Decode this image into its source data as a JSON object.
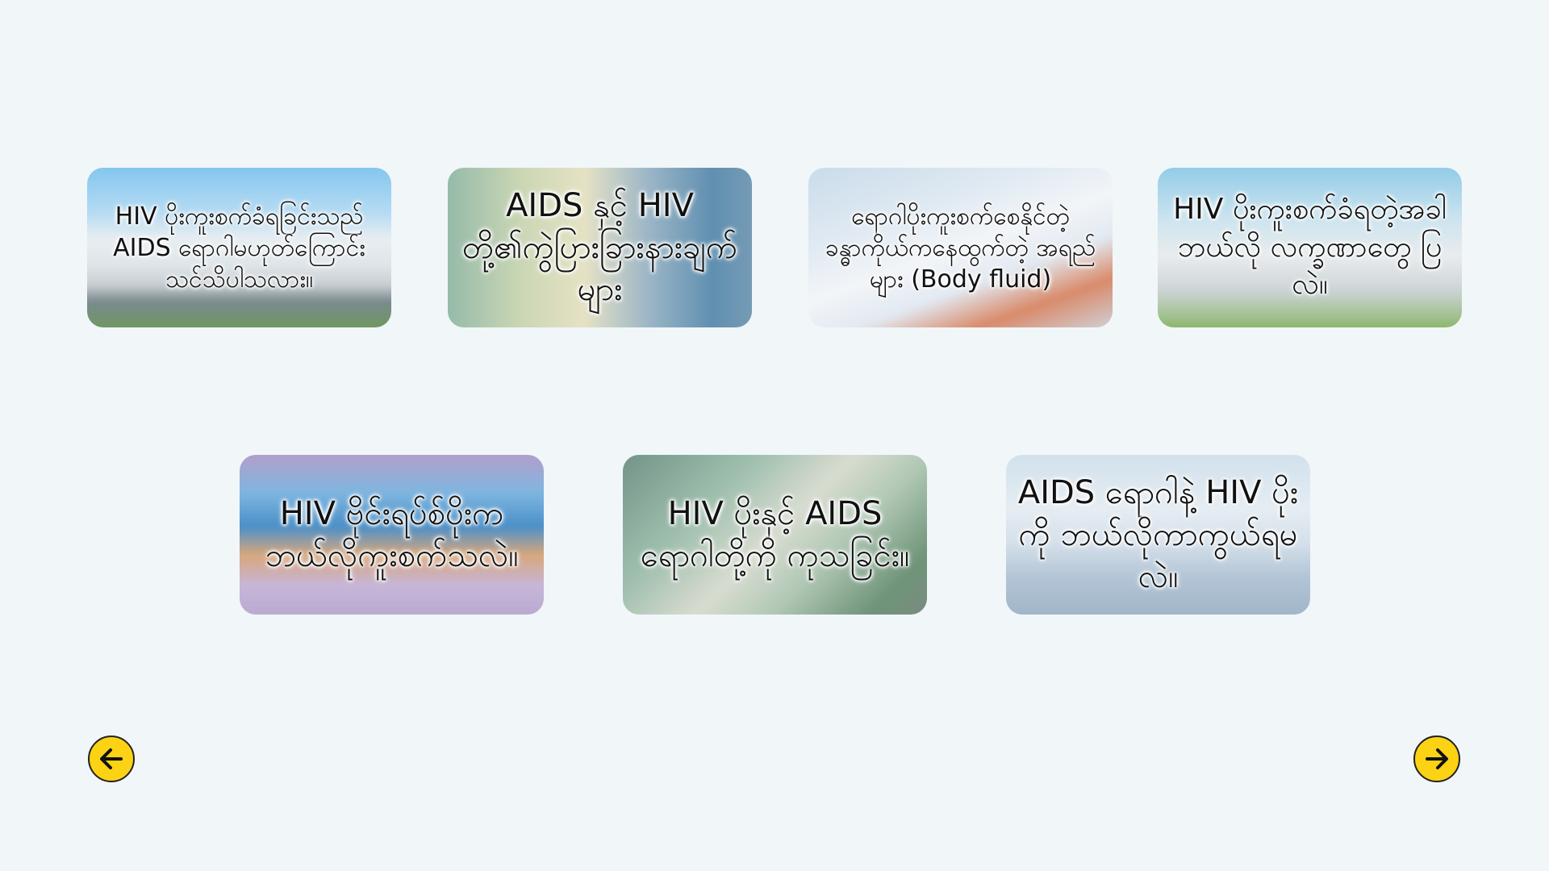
{
  "cards": [
    {
      "label": "HIV ပိုးကူးစက်ခံရခြင်းသည် AIDS ရောဂါမဟုတ်ကြောင်း သင်သိပါသလား။"
    },
    {
      "label": "AIDS နှင့် HIV တို့၏ကွဲပြားခြားနားချက်များ"
    },
    {
      "label": "ရောဂါပိုးကူးစက်စေနိုင်တဲ့ ခန္ဓာကိုယ်ကနေထွက်တဲ့ အရည်များ (Body fluid)"
    },
    {
      "label": "HIV ပိုးကူးစက်ခံရတဲ့အခါ ဘယ်လို လက္ခဏာတွေ ပြလဲ။"
    },
    {
      "label": "HIV ဗိုင်းရပ်စ်ပိုးက ဘယ်လိုကူးစက်သလဲ။"
    },
    {
      "label": "HIV ပိုးနှင့် AIDS ရောဂါတို့ကို ကုသခြင်း။"
    },
    {
      "label": "AIDS ရောဂါနဲ့ HIV ပိုးကို ဘယ်လိုကာကွယ်ရမလဲ။"
    }
  ],
  "navigation": {
    "prev_icon": "arrow-left-icon",
    "next_icon": "arrow-right-icon",
    "button_color": "#fcd214"
  }
}
